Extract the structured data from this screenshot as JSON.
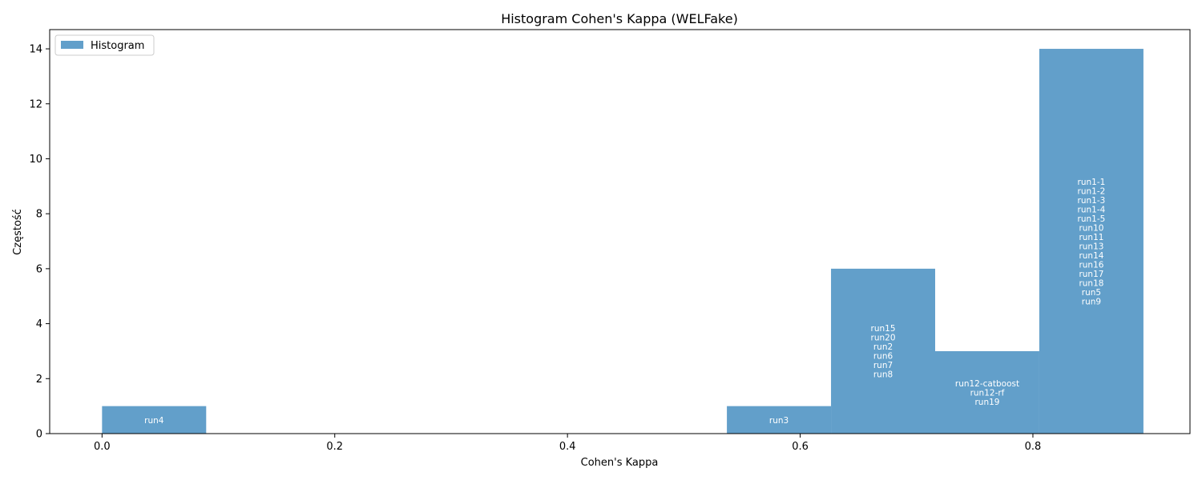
{
  "chart_data": {
    "type": "bar",
    "title": "Histogram Cohen's Kappa (WELFake)",
    "xlabel": "Cohen's Kappa",
    "ylabel": "Częstość",
    "xlim": [
      -0.045,
      0.935
    ],
    "ylim": [
      0,
      14.7
    ],
    "x_ticks": [
      0.0,
      0.2,
      0.4,
      0.6,
      0.8
    ],
    "x_tick_labels": [
      "0.0",
      "0.2",
      "0.4",
      "0.6",
      "0.8"
    ],
    "y_ticks": [
      0,
      2,
      4,
      6,
      8,
      10,
      12,
      14
    ],
    "y_tick_labels": [
      "0",
      "2",
      "4",
      "6",
      "8",
      "10",
      "12",
      "14"
    ],
    "grid": false,
    "legend": {
      "position": "top-left",
      "entries": [
        "Histogram"
      ]
    },
    "colors": {
      "bar": "#629fca",
      "label": "#ffffff"
    },
    "series": [
      {
        "name": "Histogram"
      }
    ],
    "bins": [
      {
        "start": 0.0,
        "end": 0.0895,
        "count": 1,
        "labels": [
          "run4"
        ]
      },
      {
        "start": 0.0895,
        "end": 0.179,
        "count": 0,
        "labels": []
      },
      {
        "start": 0.179,
        "end": 0.2685,
        "count": 0,
        "labels": []
      },
      {
        "start": 0.2685,
        "end": 0.358,
        "count": 0,
        "labels": []
      },
      {
        "start": 0.358,
        "end": 0.4475,
        "count": 0,
        "labels": []
      },
      {
        "start": 0.4475,
        "end": 0.537,
        "count": 0,
        "labels": []
      },
      {
        "start": 0.537,
        "end": 0.6265,
        "count": 1,
        "labels": [
          "run3"
        ]
      },
      {
        "start": 0.6265,
        "end": 0.716,
        "count": 6,
        "labels": [
          "run15",
          "run20",
          "run2",
          "run6",
          "run7",
          "run8"
        ]
      },
      {
        "start": 0.716,
        "end": 0.8055,
        "count": 3,
        "labels": [
          "run12-catboost",
          "run12-rf",
          "run19"
        ]
      },
      {
        "start": 0.8055,
        "end": 0.895,
        "count": 14,
        "labels": [
          "run1-1",
          "run1-2",
          "run1-3",
          "run1-4",
          "run1-5",
          "run10",
          "run11",
          "run13",
          "run14",
          "run16",
          "run17",
          "run18",
          "run5",
          "run9"
        ]
      }
    ]
  }
}
